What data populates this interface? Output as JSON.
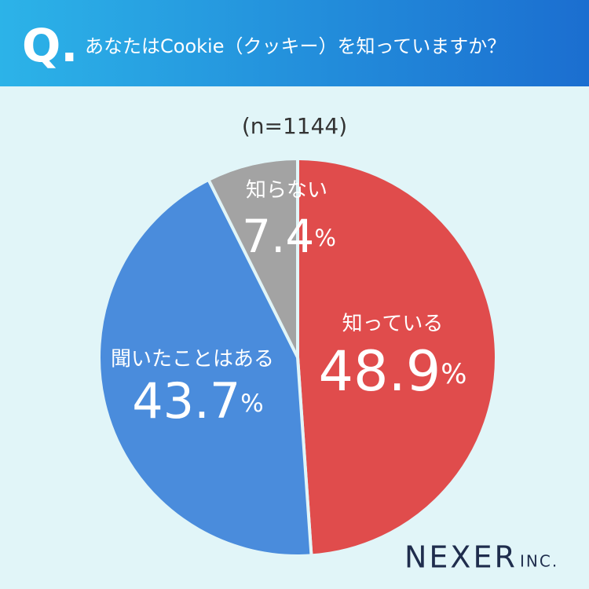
{
  "header": {
    "mark": "Q.",
    "question": "あなたはCookie（クッキー）を知っていますか？"
  },
  "chart_data": {
    "type": "pie",
    "note": "(n=1144)",
    "categories": [
      "知っている",
      "聞いたことはある",
      "知らない"
    ],
    "values": [
      48.9,
      43.7,
      7.4
    ],
    "value_labels": [
      "48.9%",
      "43.7%",
      "7.4%"
    ],
    "colors": [
      "#e04c4c",
      "#4a8cdc",
      "#a3a3a3"
    ]
  },
  "brand": {
    "name": "NEXER",
    "suffix": "INC."
  }
}
